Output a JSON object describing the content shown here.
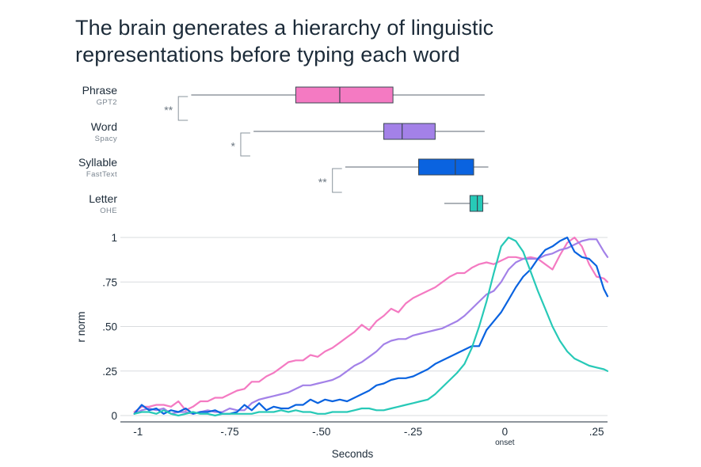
{
  "title_lines": [
    "The brain generates a hierarchy of linguistic",
    "representations before typing each word"
  ],
  "boxplots": [
    {
      "name": "Phrase",
      "sub": "GPT2",
      "color": "#f47ac2",
      "whisker_low": -0.855,
      "q1": -0.57,
      "median": -0.45,
      "q3": -0.305,
      "whisker_high": -0.055
    },
    {
      "name": "Word",
      "sub": "Spacy",
      "color": "#a381e8",
      "whisker_low": -0.685,
      "q1": -0.33,
      "median": -0.28,
      "q3": -0.19,
      "whisker_high": -0.055
    },
    {
      "name": "Syllable",
      "sub": "FastText",
      "color": "#0a63e0",
      "whisker_low": -0.435,
      "q1": -0.235,
      "median": -0.135,
      "q3": -0.085,
      "whisker_high": -0.045
    },
    {
      "name": "Letter",
      "sub": "OHE",
      "color": "#27c9b7",
      "whisker_low": -0.165,
      "q1": -0.095,
      "median": -0.075,
      "q3": -0.06,
      "whisker_high": -0.045
    }
  ],
  "significance": [
    {
      "between": [
        "Phrase",
        "Word"
      ],
      "label": "**",
      "bracket_x": -0.89
    },
    {
      "between": [
        "Word",
        "Syllable"
      ],
      "label": "*",
      "bracket_x": -0.72
    },
    {
      "between": [
        "Syllable",
        "Letter"
      ],
      "label": "**",
      "bracket_x": -0.47
    }
  ],
  "chart_data": {
    "type": "line",
    "xlabel": "Seconds",
    "ylabel": "r norm",
    "xlim": [
      -1.02,
      0.28
    ],
    "ylim": [
      0,
      1.05
    ],
    "xticks": [
      {
        "v": -1,
        "label": "-1"
      },
      {
        "v": -0.75,
        "label": "-.75"
      },
      {
        "v": -0.5,
        "label": "-.50"
      },
      {
        "v": -0.25,
        "label": "-.25"
      },
      {
        "v": 0,
        "label": "0"
      },
      {
        "v": 0.25,
        "label": ".25"
      }
    ],
    "xtick_sublabel": {
      "v": 0,
      "label": "onset"
    },
    "yticks": [
      {
        "v": 0,
        "label": "0"
      },
      {
        "v": 0.25,
        "label": ".25"
      },
      {
        "v": 0.5,
        "label": ".50"
      },
      {
        "v": 0.75,
        "label": ".75"
      },
      {
        "v": 1,
        "label": "1"
      }
    ],
    "grid": true,
    "series": [
      {
        "color": "#f47ac2",
        "points": [
          [
            -1.01,
            0.02
          ],
          [
            -0.99,
            0.05
          ],
          [
            -0.97,
            0.05
          ],
          [
            -0.95,
            0.06
          ],
          [
            -0.93,
            0.06
          ],
          [
            -0.91,
            0.05
          ],
          [
            -0.89,
            0.08
          ],
          [
            -0.87,
            0.03
          ],
          [
            -0.85,
            0.05
          ],
          [
            -0.83,
            0.08
          ],
          [
            -0.81,
            0.08
          ],
          [
            -0.79,
            0.1
          ],
          [
            -0.77,
            0.1
          ],
          [
            -0.75,
            0.12
          ],
          [
            -0.73,
            0.14
          ],
          [
            -0.71,
            0.15
          ],
          [
            -0.69,
            0.19
          ],
          [
            -0.67,
            0.19
          ],
          [
            -0.65,
            0.22
          ],
          [
            -0.63,
            0.24
          ],
          [
            -0.61,
            0.27
          ],
          [
            -0.59,
            0.3
          ],
          [
            -0.57,
            0.31
          ],
          [
            -0.55,
            0.31
          ],
          [
            -0.53,
            0.34
          ],
          [
            -0.51,
            0.33
          ],
          [
            -0.49,
            0.36
          ],
          [
            -0.47,
            0.38
          ],
          [
            -0.45,
            0.41
          ],
          [
            -0.43,
            0.44
          ],
          [
            -0.41,
            0.47
          ],
          [
            -0.39,
            0.51
          ],
          [
            -0.37,
            0.48
          ],
          [
            -0.35,
            0.53
          ],
          [
            -0.33,
            0.56
          ],
          [
            -0.31,
            0.6
          ],
          [
            -0.29,
            0.58
          ],
          [
            -0.27,
            0.63
          ],
          [
            -0.25,
            0.66
          ],
          [
            -0.23,
            0.68
          ],
          [
            -0.21,
            0.7
          ],
          [
            -0.19,
            0.72
          ],
          [
            -0.17,
            0.75
          ],
          [
            -0.15,
            0.78
          ],
          [
            -0.13,
            0.8
          ],
          [
            -0.11,
            0.8
          ],
          [
            -0.09,
            0.83
          ],
          [
            -0.07,
            0.85
          ],
          [
            -0.05,
            0.86
          ],
          [
            -0.03,
            0.85
          ],
          [
            -0.01,
            0.87
          ],
          [
            0.01,
            0.89
          ],
          [
            0.03,
            0.89
          ],
          [
            0.05,
            0.88
          ],
          [
            0.07,
            0.89
          ],
          [
            0.09,
            0.88
          ],
          [
            0.11,
            0.85
          ],
          [
            0.13,
            0.82
          ],
          [
            0.15,
            0.9
          ],
          [
            0.17,
            0.97
          ],
          [
            0.19,
            1.0
          ],
          [
            0.21,
            0.95
          ],
          [
            0.23,
            0.85
          ],
          [
            0.25,
            0.78
          ],
          [
            0.27,
            0.77
          ],
          [
            0.28,
            0.75
          ]
        ]
      },
      {
        "color": "#a381e8",
        "points": [
          [
            -1.01,
            0.01
          ],
          [
            -0.99,
            0.03
          ],
          [
            -0.97,
            0.04
          ],
          [
            -0.95,
            0.03
          ],
          [
            -0.93,
            0.04
          ],
          [
            -0.91,
            0.01
          ],
          [
            -0.89,
            0.02
          ],
          [
            -0.87,
            0.02
          ],
          [
            -0.85,
            0.01
          ],
          [
            -0.83,
            0.02
          ],
          [
            -0.81,
            0.03
          ],
          [
            -0.79,
            0.02
          ],
          [
            -0.77,
            0.02
          ],
          [
            -0.75,
            0.04
          ],
          [
            -0.73,
            0.03
          ],
          [
            -0.71,
            0.03
          ],
          [
            -0.69,
            0.07
          ],
          [
            -0.67,
            0.09
          ],
          [
            -0.65,
            0.1
          ],
          [
            -0.63,
            0.11
          ],
          [
            -0.61,
            0.12
          ],
          [
            -0.59,
            0.13
          ],
          [
            -0.57,
            0.15
          ],
          [
            -0.55,
            0.17
          ],
          [
            -0.53,
            0.17
          ],
          [
            -0.51,
            0.18
          ],
          [
            -0.49,
            0.19
          ],
          [
            -0.47,
            0.2
          ],
          [
            -0.45,
            0.22
          ],
          [
            -0.43,
            0.25
          ],
          [
            -0.41,
            0.28
          ],
          [
            -0.39,
            0.3
          ],
          [
            -0.37,
            0.33
          ],
          [
            -0.35,
            0.36
          ],
          [
            -0.33,
            0.4
          ],
          [
            -0.31,
            0.42
          ],
          [
            -0.29,
            0.43
          ],
          [
            -0.27,
            0.43
          ],
          [
            -0.25,
            0.45
          ],
          [
            -0.23,
            0.46
          ],
          [
            -0.21,
            0.47
          ],
          [
            -0.19,
            0.48
          ],
          [
            -0.17,
            0.49
          ],
          [
            -0.15,
            0.51
          ],
          [
            -0.13,
            0.53
          ],
          [
            -0.11,
            0.56
          ],
          [
            -0.09,
            0.6
          ],
          [
            -0.07,
            0.64
          ],
          [
            -0.05,
            0.68
          ],
          [
            -0.03,
            0.7
          ],
          [
            -0.01,
            0.75
          ],
          [
            0.01,
            0.82
          ],
          [
            0.03,
            0.86
          ],
          [
            0.05,
            0.88
          ],
          [
            0.07,
            0.88
          ],
          [
            0.09,
            0.88
          ],
          [
            0.11,
            0.9
          ],
          [
            0.13,
            0.91
          ],
          [
            0.15,
            0.93
          ],
          [
            0.17,
            0.94
          ],
          [
            0.19,
            0.96
          ],
          [
            0.21,
            0.98
          ],
          [
            0.23,
            0.99
          ],
          [
            0.25,
            0.99
          ],
          [
            0.27,
            0.92
          ],
          [
            0.28,
            0.89
          ]
        ]
      },
      {
        "color": "#0a63e0",
        "points": [
          [
            -1.01,
            0.01
          ],
          [
            -0.99,
            0.06
          ],
          [
            -0.97,
            0.03
          ],
          [
            -0.95,
            0.04
          ],
          [
            -0.93,
            0.01
          ],
          [
            -0.91,
            0.03
          ],
          [
            -0.89,
            0.02
          ],
          [
            -0.87,
            0.04
          ],
          [
            -0.85,
            0.01
          ],
          [
            -0.83,
            0.02
          ],
          [
            -0.81,
            0.02
          ],
          [
            -0.79,
            0.03
          ],
          [
            -0.77,
            0.01
          ],
          [
            -0.75,
            0.01
          ],
          [
            -0.73,
            0.02
          ],
          [
            -0.71,
            0.06
          ],
          [
            -0.69,
            0.03
          ],
          [
            -0.67,
            0.07
          ],
          [
            -0.65,
            0.03
          ],
          [
            -0.63,
            0.05
          ],
          [
            -0.61,
            0.04
          ],
          [
            -0.59,
            0.04
          ],
          [
            -0.57,
            0.06
          ],
          [
            -0.55,
            0.06
          ],
          [
            -0.53,
            0.09
          ],
          [
            -0.51,
            0.07
          ],
          [
            -0.49,
            0.09
          ],
          [
            -0.47,
            0.08
          ],
          [
            -0.45,
            0.09
          ],
          [
            -0.43,
            0.08
          ],
          [
            -0.41,
            0.1
          ],
          [
            -0.39,
            0.12
          ],
          [
            -0.37,
            0.14
          ],
          [
            -0.35,
            0.17
          ],
          [
            -0.33,
            0.18
          ],
          [
            -0.31,
            0.2
          ],
          [
            -0.29,
            0.21
          ],
          [
            -0.27,
            0.21
          ],
          [
            -0.25,
            0.22
          ],
          [
            -0.23,
            0.24
          ],
          [
            -0.21,
            0.26
          ],
          [
            -0.19,
            0.29
          ],
          [
            -0.17,
            0.31
          ],
          [
            -0.15,
            0.33
          ],
          [
            -0.13,
            0.35
          ],
          [
            -0.11,
            0.37
          ],
          [
            -0.09,
            0.39
          ],
          [
            -0.07,
            0.39
          ],
          [
            -0.05,
            0.48
          ],
          [
            -0.03,
            0.53
          ],
          [
            -0.01,
            0.58
          ],
          [
            0.01,
            0.65
          ],
          [
            0.03,
            0.72
          ],
          [
            0.05,
            0.78
          ],
          [
            0.07,
            0.82
          ],
          [
            0.09,
            0.88
          ],
          [
            0.11,
            0.93
          ],
          [
            0.13,
            0.95
          ],
          [
            0.15,
            0.98
          ],
          [
            0.17,
            1.0
          ],
          [
            0.19,
            0.92
          ],
          [
            0.21,
            0.89
          ],
          [
            0.23,
            0.88
          ],
          [
            0.25,
            0.84
          ],
          [
            0.27,
            0.71
          ],
          [
            0.28,
            0.67
          ]
        ]
      },
      {
        "color": "#27c9b7",
        "points": [
          [
            -1.01,
            0.01
          ],
          [
            -0.99,
            0.02
          ],
          [
            -0.97,
            0.02
          ],
          [
            -0.95,
            0.01
          ],
          [
            -0.93,
            0.03
          ],
          [
            -0.91,
            0.01
          ],
          [
            -0.89,
            0.0
          ],
          [
            -0.87,
            0.01
          ],
          [
            -0.85,
            0.02
          ],
          [
            -0.83,
            0.01
          ],
          [
            -0.81,
            0.01
          ],
          [
            -0.79,
            0.0
          ],
          [
            -0.77,
            0.01
          ],
          [
            -0.75,
            0.01
          ],
          [
            -0.73,
            0.01
          ],
          [
            -0.71,
            0.01
          ],
          [
            -0.69,
            0.01
          ],
          [
            -0.67,
            0.02
          ],
          [
            -0.65,
            0.02
          ],
          [
            -0.63,
            0.02
          ],
          [
            -0.61,
            0.03
          ],
          [
            -0.59,
            0.02
          ],
          [
            -0.57,
            0.03
          ],
          [
            -0.55,
            0.02
          ],
          [
            -0.53,
            0.02
          ],
          [
            -0.51,
            0.01
          ],
          [
            -0.49,
            0.01
          ],
          [
            -0.47,
            0.02
          ],
          [
            -0.45,
            0.02
          ],
          [
            -0.43,
            0.02
          ],
          [
            -0.41,
            0.03
          ],
          [
            -0.39,
            0.04
          ],
          [
            -0.37,
            0.04
          ],
          [
            -0.35,
            0.03
          ],
          [
            -0.33,
            0.03
          ],
          [
            -0.31,
            0.04
          ],
          [
            -0.29,
            0.05
          ],
          [
            -0.27,
            0.06
          ],
          [
            -0.25,
            0.07
          ],
          [
            -0.23,
            0.08
          ],
          [
            -0.21,
            0.09
          ],
          [
            -0.19,
            0.12
          ],
          [
            -0.17,
            0.16
          ],
          [
            -0.15,
            0.2
          ],
          [
            -0.13,
            0.24
          ],
          [
            -0.11,
            0.29
          ],
          [
            -0.09,
            0.38
          ],
          [
            -0.07,
            0.5
          ],
          [
            -0.05,
            0.64
          ],
          [
            -0.03,
            0.8
          ],
          [
            -0.01,
            0.95
          ],
          [
            0.01,
            1.0
          ],
          [
            0.03,
            0.98
          ],
          [
            0.05,
            0.92
          ],
          [
            0.07,
            0.81
          ],
          [
            0.09,
            0.7
          ],
          [
            0.11,
            0.6
          ],
          [
            0.13,
            0.5
          ],
          [
            0.15,
            0.42
          ],
          [
            0.17,
            0.36
          ],
          [
            0.19,
            0.32
          ],
          [
            0.21,
            0.3
          ],
          [
            0.23,
            0.28
          ],
          [
            0.25,
            0.27
          ],
          [
            0.27,
            0.26
          ],
          [
            0.28,
            0.25
          ]
        ]
      }
    ]
  }
}
